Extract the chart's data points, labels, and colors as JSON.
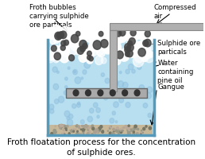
{
  "title": "Froth floatation process for the concentration\nof sulphide ores.",
  "title_fontsize": 7.5,
  "labels": {
    "froth_bubbles": "Froth bubbles\ncarrying sulphide\nore particals",
    "compressed_air": "Compressed\nair",
    "sulphide_ore": "Sulphide ore\nparticals",
    "water_pine": "Water\ncontaining\npine oil",
    "gangue": "Gangue"
  },
  "colors": {
    "tank_wall": "#aaaaaa",
    "tank_fill": "#b8dff0",
    "water_light": "#c8e8f5",
    "froth_white": "#f0f0f0",
    "froth_bubble_light": "#e0e0e0",
    "gangue_color": "#c8b89a",
    "pipe_gray": "#b0b0b0",
    "pipe_dark": "#888888",
    "diffuser_gray": "#999999",
    "bubble_blue": "#90c0e0",
    "ore_dark": "#444444",
    "background": "#ffffff",
    "text_color": "#000000",
    "arrow_color": "#000000"
  }
}
